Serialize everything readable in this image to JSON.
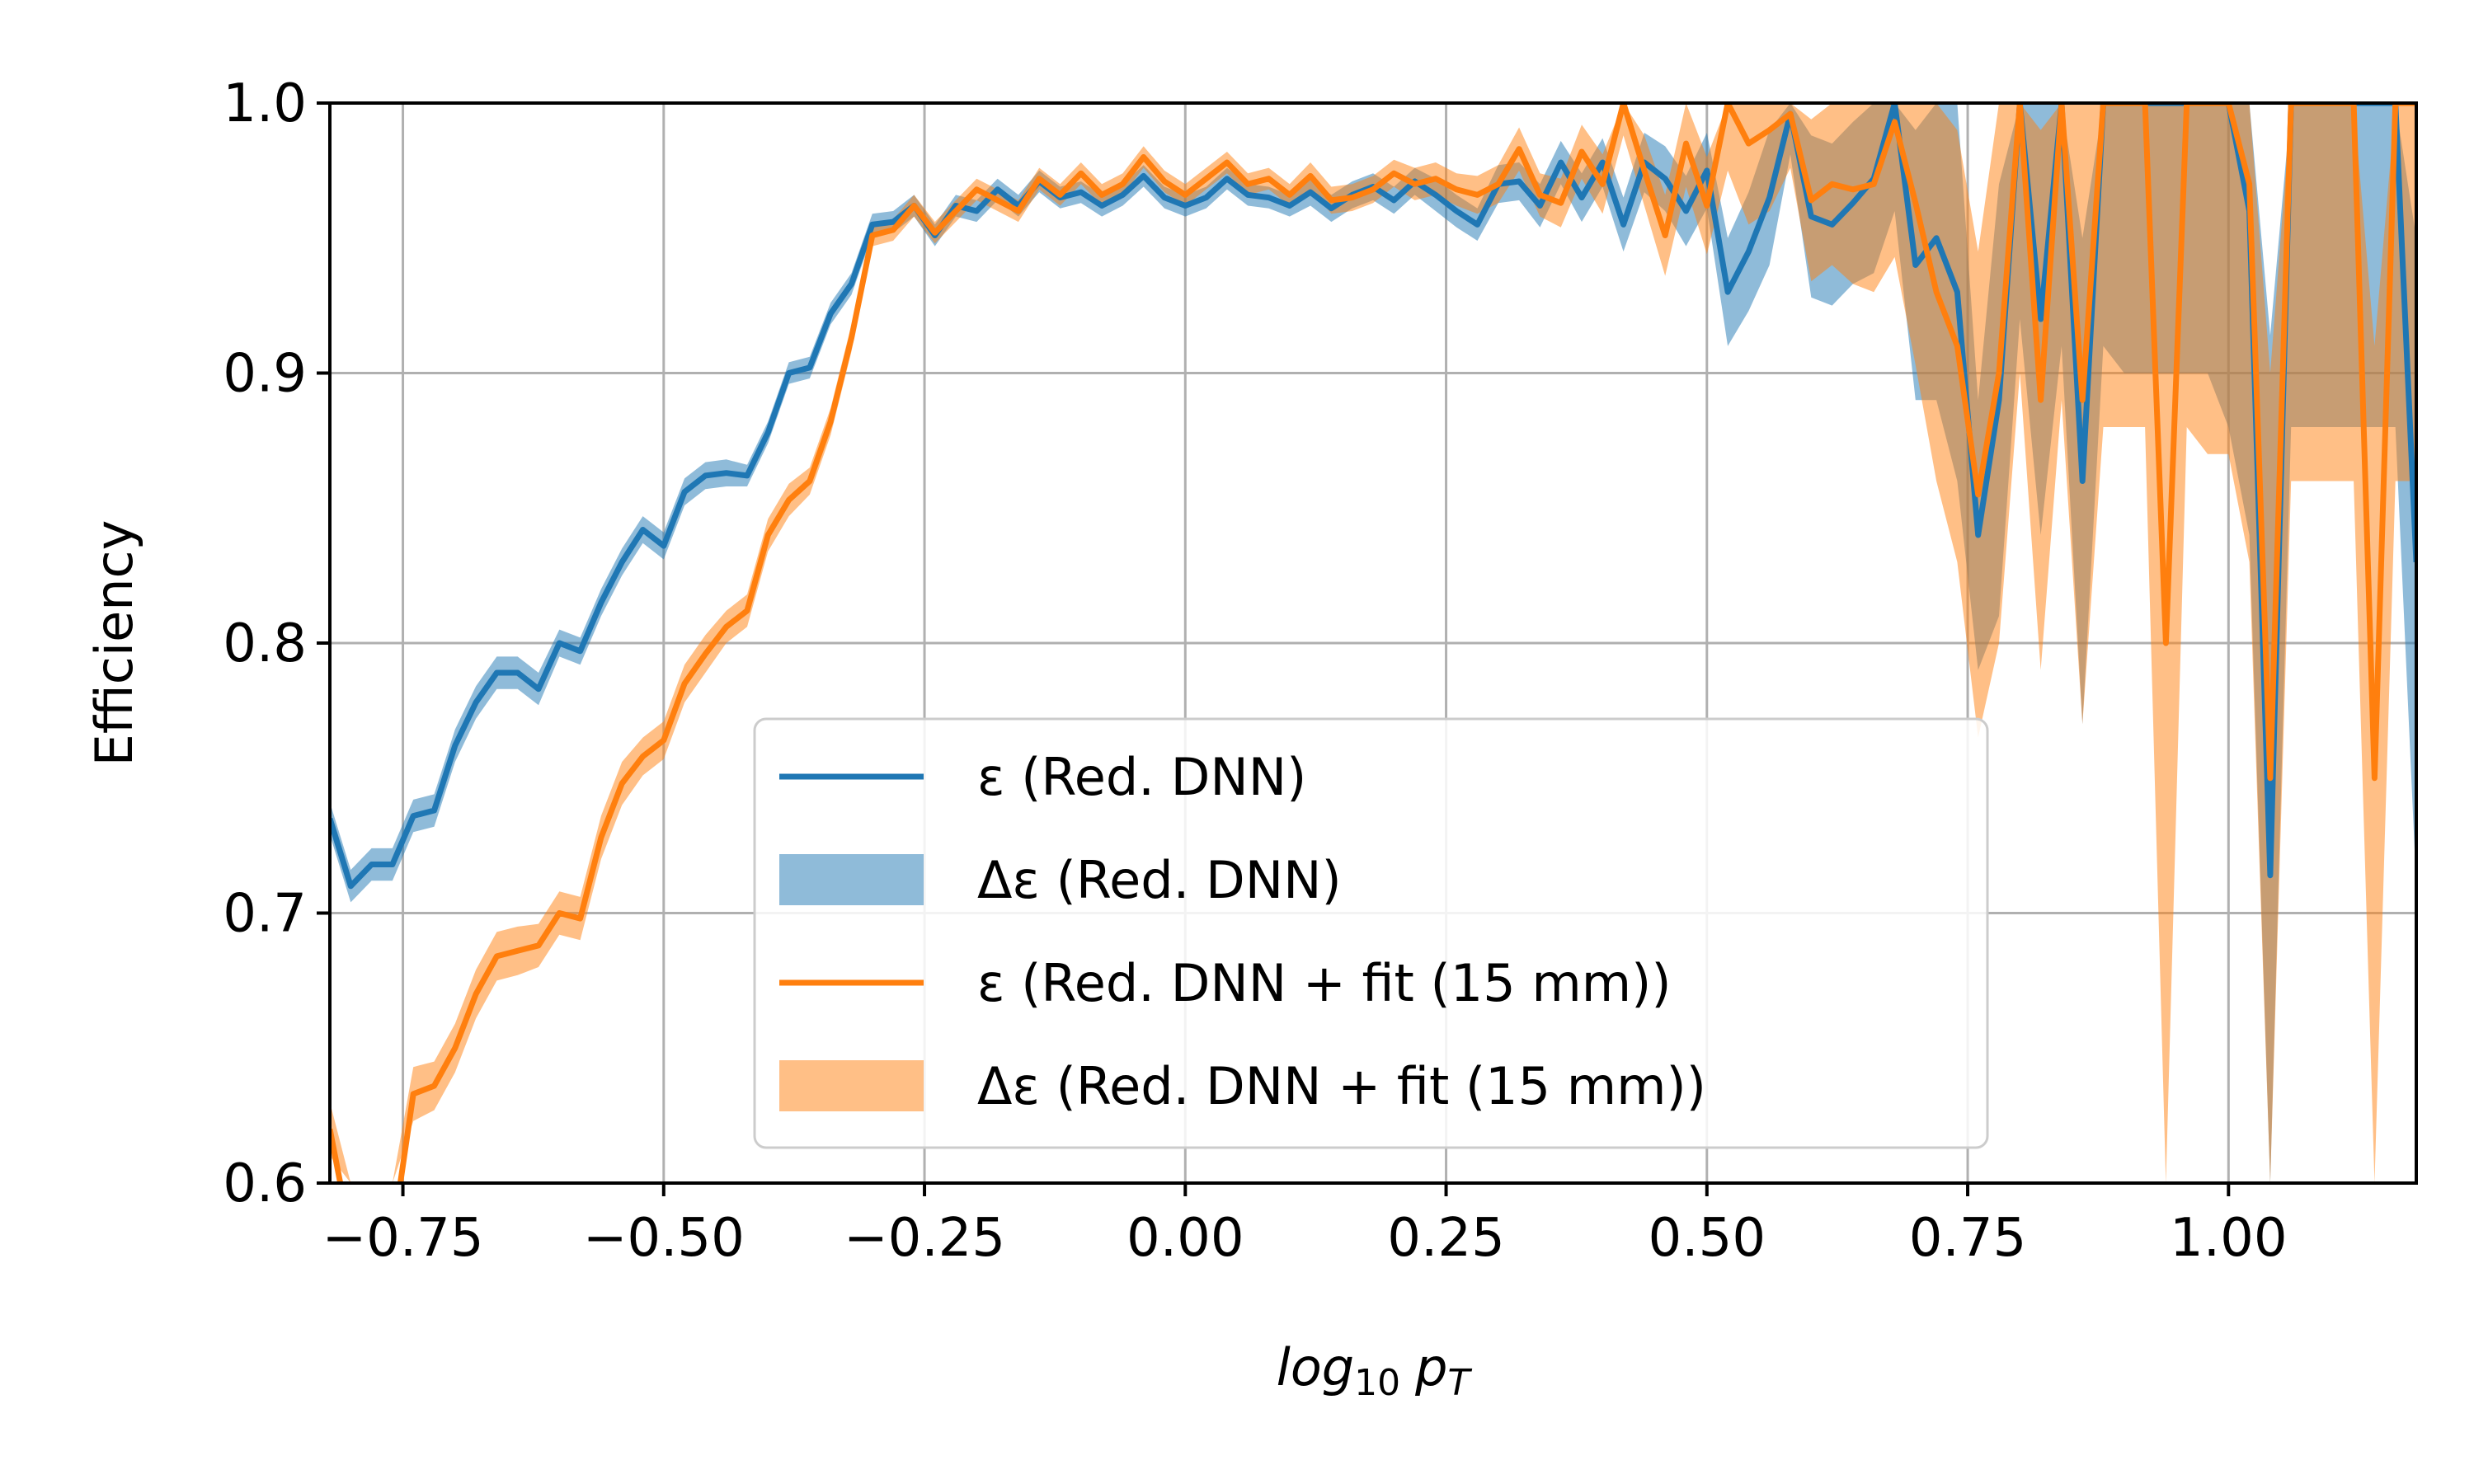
{
  "chart_data": {
    "type": "line",
    "xlabel_main": "log",
    "xlabel_sub": "10",
    "xlabel_var": "p",
    "xlabel_var_sub": "T",
    "ylabel": "Efficiency",
    "xlim": [
      -0.82,
      1.18
    ],
    "ylim": [
      0.6,
      1.0
    ],
    "grid": true,
    "legend_position": "lower-center",
    "x_ticks": [
      -0.75,
      -0.5,
      -0.25,
      0.0,
      0.25,
      0.5,
      0.75,
      1.0
    ],
    "x_tick_labels": [
      "−0.75",
      "−0.50",
      "−0.25",
      "0.00",
      "0.25",
      "0.50",
      "0.75",
      "1.00"
    ],
    "y_ticks": [
      0.6,
      0.7,
      0.8,
      0.9,
      1.0
    ],
    "y_tick_labels": [
      "0.6",
      "0.7",
      "0.8",
      "0.9",
      "1.0"
    ],
    "x": [
      -0.82,
      -0.8,
      -0.78,
      -0.76,
      -0.74,
      -0.72,
      -0.7,
      -0.68,
      -0.66,
      -0.64,
      -0.62,
      -0.6,
      -0.58,
      -0.56,
      -0.54,
      -0.52,
      -0.5,
      -0.48,
      -0.46,
      -0.44,
      -0.42,
      -0.4,
      -0.38,
      -0.36,
      -0.34,
      -0.32,
      -0.3,
      -0.28,
      -0.26,
      -0.24,
      -0.22,
      -0.2,
      -0.18,
      -0.16,
      -0.14,
      -0.12,
      -0.1,
      -0.08,
      -0.06,
      -0.04,
      -0.02,
      0.0,
      0.02,
      0.04,
      0.06,
      0.08,
      0.1,
      0.12,
      0.14,
      0.16,
      0.18,
      0.2,
      0.22,
      0.24,
      0.26,
      0.28,
      0.3,
      0.32,
      0.34,
      0.36,
      0.38,
      0.4,
      0.42,
      0.44,
      0.46,
      0.48,
      0.5,
      0.52,
      0.54,
      0.56,
      0.58,
      0.6,
      0.62,
      0.64,
      0.66,
      0.68,
      0.7,
      0.72,
      0.74,
      0.76,
      0.78,
      0.8,
      0.82,
      0.84,
      0.86,
      0.88,
      0.9,
      0.92,
      0.94,
      0.96,
      0.98,
      1.0,
      1.02,
      1.04,
      1.06,
      1.08,
      1.1,
      1.12,
      1.14,
      1.16,
      1.18
    ],
    "series": [
      {
        "name": "ε (Red. DNN)",
        "band_name": "Δε (Red. DNN)",
        "color": "#1f77b4",
        "band_color": "#1f77b4",
        "values": [
          0.735,
          0.71,
          0.718,
          0.718,
          0.736,
          0.738,
          0.762,
          0.778,
          0.789,
          0.789,
          0.783,
          0.8,
          0.797,
          0.815,
          0.83,
          0.842,
          0.836,
          0.856,
          0.862,
          0.863,
          0.862,
          0.878,
          0.9,
          0.902,
          0.922,
          0.933,
          0.955,
          0.956,
          0.962,
          0.951,
          0.962,
          0.96,
          0.968,
          0.962,
          0.971,
          0.965,
          0.967,
          0.962,
          0.966,
          0.973,
          0.965,
          0.962,
          0.965,
          0.972,
          0.966,
          0.965,
          0.962,
          0.967,
          0.961,
          0.966,
          0.969,
          0.964,
          0.971,
          0.966,
          0.96,
          0.955,
          0.97,
          0.971,
          0.962,
          0.978,
          0.965,
          0.978,
          0.955,
          0.978,
          0.972,
          0.96,
          0.975,
          0.93,
          0.945,
          0.965,
          0.996,
          0.958,
          0.955,
          0.963,
          0.972,
          1.0,
          0.94,
          0.95,
          0.93,
          0.84,
          0.89,
          1.0,
          0.92,
          1.0,
          0.86,
          1.0,
          1.0,
          1.0,
          1.0,
          1.0,
          1.0,
          1.0,
          0.96,
          0.714,
          1.0,
          1.0,
          1.0,
          1.0,
          1.0,
          1.0,
          0.83
        ],
        "band_halfwidth": [
          0.006,
          0.006,
          0.006,
          0.006,
          0.006,
          0.006,
          0.006,
          0.006,
          0.006,
          0.006,
          0.006,
          0.005,
          0.005,
          0.005,
          0.005,
          0.005,
          0.005,
          0.005,
          0.005,
          0.005,
          0.004,
          0.004,
          0.004,
          0.004,
          0.004,
          0.004,
          0.004,
          0.004,
          0.004,
          0.004,
          0.004,
          0.004,
          0.004,
          0.004,
          0.004,
          0.004,
          0.004,
          0.004,
          0.004,
          0.004,
          0.004,
          0.004,
          0.004,
          0.004,
          0.004,
          0.004,
          0.004,
          0.005,
          0.005,
          0.005,
          0.005,
          0.005,
          0.005,
          0.006,
          0.006,
          0.006,
          0.007,
          0.007,
          0.008,
          0.008,
          0.009,
          0.009,
          0.01,
          0.011,
          0.012,
          0.013,
          0.014,
          0.02,
          0.022,
          0.025,
          0.015,
          0.03,
          0.03,
          0.03,
          0.035,
          0.04,
          0.05,
          0.06,
          0.07,
          0.05,
          0.08,
          0.08,
          0.08,
          0.09,
          0.09,
          0.09,
          0.1,
          0.1,
          0.1,
          0.1,
          0.1,
          0.12,
          0.12,
          0.2,
          0.12,
          0.12,
          0.12,
          0.12,
          0.12,
          0.12,
          0.12
        ]
      },
      {
        "name": "ε (Red. DNN + fit (15 mm))",
        "band_name": "Δε (Red. DNN + fit (15 mm))",
        "color": "#ff7f0e",
        "band_color": "#ff7f0e",
        "values": [
          0.62,
          0.58,
          0.55,
          0.58,
          0.633,
          0.636,
          0.65,
          0.67,
          0.684,
          0.686,
          0.688,
          0.7,
          0.698,
          0.728,
          0.748,
          0.758,
          0.764,
          0.785,
          0.796,
          0.806,
          0.812,
          0.84,
          0.853,
          0.86,
          0.882,
          0.913,
          0.951,
          0.953,
          0.962,
          0.952,
          0.96,
          0.968,
          0.964,
          0.96,
          0.972,
          0.966,
          0.974,
          0.966,
          0.97,
          0.98,
          0.971,
          0.966,
          0.972,
          0.978,
          0.97,
          0.972,
          0.966,
          0.973,
          0.964,
          0.965,
          0.968,
          0.974,
          0.97,
          0.972,
          0.968,
          0.966,
          0.97,
          0.983,
          0.966,
          0.963,
          0.982,
          0.97,
          1.0,
          0.975,
          0.951,
          0.985,
          0.962,
          1.0,
          0.985,
          0.99,
          0.996,
          0.964,
          0.97,
          0.968,
          0.97,
          0.993,
          0.963,
          0.93,
          0.91,
          0.855,
          0.9,
          1.0,
          0.89,
          1.0,
          0.89,
          1.0,
          1.0,
          1.0,
          0.8,
          1.0,
          1.0,
          1.0,
          0.97,
          0.75,
          1.0,
          1.0,
          1.0,
          1.0,
          0.75,
          1.0,
          1.0
        ],
        "band_halfwidth": [
          0.01,
          0.01,
          0.01,
          0.01,
          0.01,
          0.009,
          0.009,
          0.009,
          0.009,
          0.009,
          0.008,
          0.008,
          0.008,
          0.008,
          0.008,
          0.007,
          0.007,
          0.007,
          0.007,
          0.006,
          0.006,
          0.006,
          0.006,
          0.005,
          0.005,
          0.005,
          0.004,
          0.004,
          0.004,
          0.004,
          0.004,
          0.004,
          0.004,
          0.004,
          0.004,
          0.004,
          0.004,
          0.004,
          0.004,
          0.004,
          0.004,
          0.004,
          0.004,
          0.004,
          0.004,
          0.004,
          0.004,
          0.005,
          0.005,
          0.005,
          0.005,
          0.005,
          0.006,
          0.006,
          0.006,
          0.007,
          0.007,
          0.008,
          0.008,
          0.009,
          0.01,
          0.011,
          0.012,
          0.013,
          0.015,
          0.016,
          0.018,
          0.025,
          0.03,
          0.03,
          0.02,
          0.03,
          0.03,
          0.035,
          0.04,
          0.05,
          0.06,
          0.07,
          0.08,
          0.09,
          0.1,
          0.1,
          0.1,
          0.11,
          0.12,
          0.12,
          0.12,
          0.12,
          0.2,
          0.12,
          0.13,
          0.13,
          0.14,
          0.15,
          0.14,
          0.14,
          0.14,
          0.14,
          0.16,
          0.14,
          0.14
        ]
      }
    ]
  }
}
